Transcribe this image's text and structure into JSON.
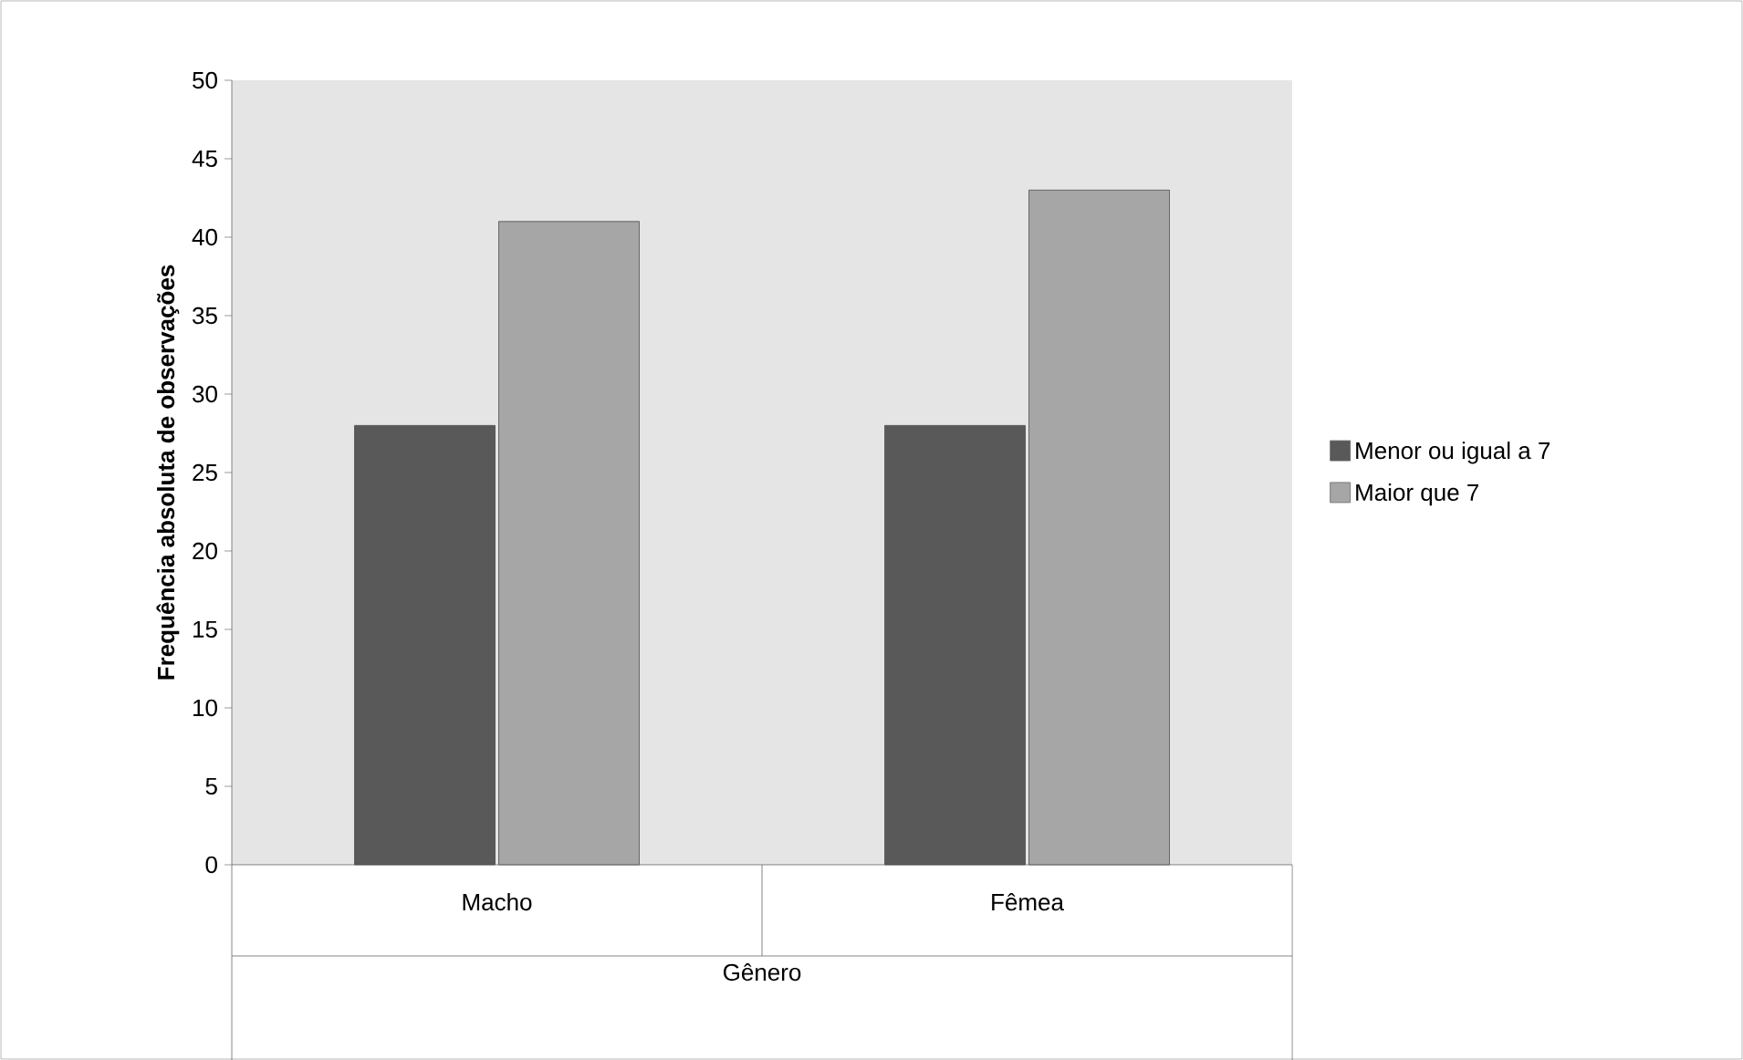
{
  "chart_data": {
    "type": "bar",
    "categories": [
      "Macho",
      "Fêmea"
    ],
    "xlabel": "Gênero",
    "ylabel": "Frequência absoluta de observações",
    "series": [
      {
        "name": "Menor ou igual a 7",
        "color": "#595959",
        "values": [
          28,
          28
        ]
      },
      {
        "name": "Maior que 7",
        "color": "#a6a6a6",
        "values": [
          41,
          43
        ]
      }
    ],
    "ylim": [
      0,
      50
    ],
    "yticks": [
      0,
      5,
      10,
      15,
      20,
      25,
      30,
      35,
      40,
      45,
      50
    ],
    "legend": "right"
  }
}
